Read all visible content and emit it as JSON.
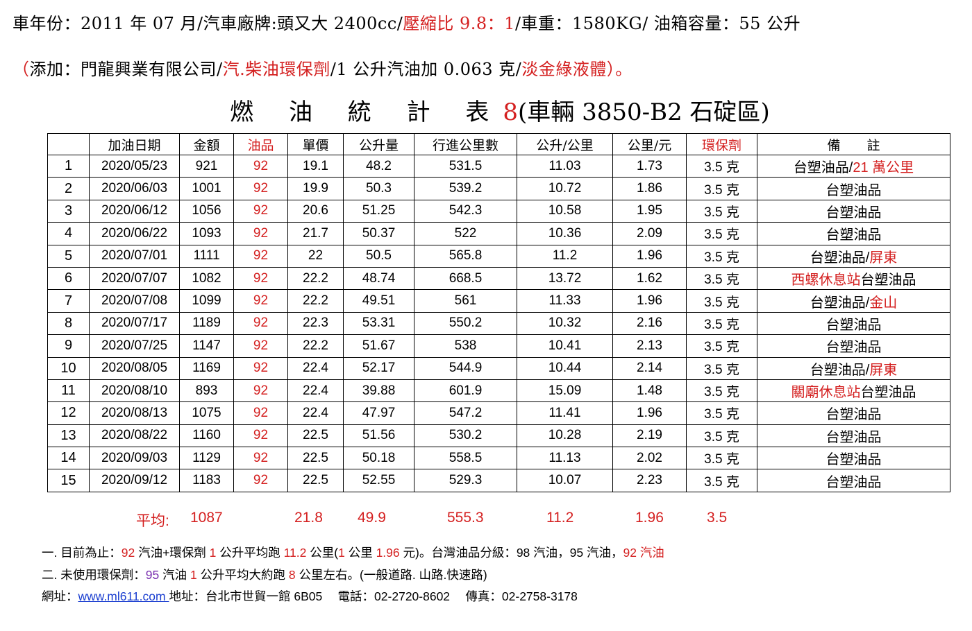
{
  "header": {
    "line1": "車年份：2011 年 07 月/汽車廠牌:頭又大 2400cc/",
    "line1_red": "壓縮比 9.8：1",
    "line1_tail": "/車重：1580KG/ 油箱容量：55 公升",
    "line2_open": "（",
    "line2_a": "添加：門龍興業有限公司/",
    "line2_b": "汽.柴油環保劑",
    "line2_c": "/1 公升汽油加 0.063 克/",
    "line2_d": "淡金綠液體",
    "line2_close": "）。"
  },
  "title": {
    "prefix": "燃 油 統 計 表",
    "number": "8",
    "suffix": "(車輛 3850-B2 石碇區)"
  },
  "table": {
    "headers": [
      "",
      "加油日期",
      "金額",
      "油品",
      "單價",
      "公升量",
      "行進公里數",
      "公升/公里",
      "公里/元",
      "環保劑",
      "備　　註"
    ],
    "rows": [
      {
        "no": "1",
        "date": "2020/05/23",
        "amount": "921",
        "fuel": "92",
        "price": "19.1",
        "liters": "48.2",
        "km": "531.5",
        "lpk": "11.03",
        "kpy": "1.73",
        "additive": "3.5 克",
        "note_a": "台塑油品/",
        "note_b": "21 萬公里"
      },
      {
        "no": "2",
        "date": "2020/06/03",
        "amount": "1001",
        "fuel": "92",
        "price": "19.9",
        "liters": "50.3",
        "km": "539.2",
        "lpk": "10.72",
        "kpy": "1.86",
        "additive": "3.5 克",
        "note_a": "台塑油品",
        "note_b": ""
      },
      {
        "no": "3",
        "date": "2020/06/12",
        "amount": "1056",
        "fuel": "92",
        "price": "20.6",
        "liters": "51.25",
        "km": "542.3",
        "lpk": "10.58",
        "kpy": "1.95",
        "additive": "3.5 克",
        "note_a": "台塑油品",
        "note_b": ""
      },
      {
        "no": "4",
        "date": "2020/06/22",
        "amount": "1093",
        "fuel": "92",
        "price": "21.7",
        "liters": "50.37",
        "km": "522",
        "lpk": "10.36",
        "kpy": "2.09",
        "additive": "3.5 克",
        "note_a": "台塑油品",
        "note_b": ""
      },
      {
        "no": "5",
        "date": "2020/07/01",
        "amount": "1111",
        "fuel": "92",
        "price": "22",
        "liters": "50.5",
        "km": "565.8",
        "lpk": "11.2",
        "kpy": "1.96",
        "additive": "3.5 克",
        "note_a": "台塑油品/",
        "note_b": "屏東"
      },
      {
        "no": "6",
        "date": "2020/07/07",
        "amount": "1082",
        "fuel": "92",
        "price": "22.2",
        "liters": "48.74",
        "km": "668.5",
        "lpk": "13.72",
        "kpy": "1.62",
        "additive": "3.5 克",
        "note_pre": "西螺休息站",
        "note_a": "台塑油品",
        "note_b": ""
      },
      {
        "no": "7",
        "date": "2020/07/08",
        "amount": "1099",
        "fuel": "92",
        "price": "22.2",
        "liters": "49.51",
        "km": "561",
        "lpk": "11.33",
        "kpy": "1.96",
        "additive": "3.5 克",
        "note_a": "台塑油品/",
        "note_b": "金山"
      },
      {
        "no": "8",
        "date": "2020/07/17",
        "amount": "1189",
        "fuel": "92",
        "price": "22.3",
        "liters": "53.31",
        "km": "550.2",
        "lpk": "10.32",
        "kpy": "2.16",
        "additive": "3.5 克",
        "note_a": "台塑油品",
        "note_b": ""
      },
      {
        "no": "9",
        "date": "2020/07/25",
        "amount": "1147",
        "fuel": "92",
        "price": "22.2",
        "liters": "51.67",
        "km": "538",
        "lpk": "10.41",
        "kpy": "2.13",
        "additive": "3.5 克",
        "note_a": "台塑油品",
        "note_b": ""
      },
      {
        "no": "10",
        "date": "2020/08/05",
        "amount": "1169",
        "fuel": "92",
        "price": "22.4",
        "liters": "52.17",
        "km": "544.9",
        "lpk": "10.44",
        "kpy": "2.14",
        "additive": "3.5 克",
        "note_a": "台塑油品/",
        "note_b": "屏東"
      },
      {
        "no": "11",
        "date": "2020/08/10",
        "amount": "893",
        "fuel": "92",
        "price": "22.4",
        "liters": "39.88",
        "km": "601.9",
        "lpk": "15.09",
        "kpy": "1.48",
        "additive": "3.5 克",
        "note_pre": "關廟休息站",
        "note_a": "台塑油品",
        "note_b": ""
      },
      {
        "no": "12",
        "date": "2020/08/13",
        "amount": "1075",
        "fuel": "92",
        "price": "22.4",
        "liters": "47.97",
        "km": "547.2",
        "lpk": "11.41",
        "kpy": "1.96",
        "additive": "3.5 克",
        "note_a": "台塑油品",
        "note_b": ""
      },
      {
        "no": "13",
        "date": "2020/08/22",
        "amount": "1160",
        "fuel": "92",
        "price": "22.5",
        "liters": "51.56",
        "km": "530.2",
        "lpk": "10.28",
        "kpy": "2.19",
        "additive": "3.5 克",
        "note_a": "台塑油品",
        "note_b": ""
      },
      {
        "no": "14",
        "date": "2020/09/03",
        "amount": "1129",
        "fuel": "92",
        "price": "22.5",
        "liters": "50.18",
        "km": "558.5",
        "lpk": "11.13",
        "kpy": "2.02",
        "additive": "3.5 克",
        "note_a": "台塑油品",
        "note_b": ""
      },
      {
        "no": "15",
        "date": "2020/09/12",
        "amount": "1183",
        "fuel": "92",
        "price": "22.5",
        "liters": "52.55",
        "km": "529.3",
        "lpk": "10.07",
        "kpy": "2.23",
        "additive": "3.5 克",
        "note_a": "台塑油品",
        "note_b": ""
      }
    ]
  },
  "average": {
    "label": "平均:",
    "amount": "1087",
    "price": "21.8",
    "liters": "49.9",
    "km": "555.3",
    "lpk": "11.2",
    "kpy": "1.96",
    "additive": "3.5"
  },
  "footer": {
    "line1": [
      {
        "t": "一. 目前為止：",
        "c": ""
      },
      {
        "t": "92",
        "c": "red"
      },
      {
        "t": " 汽油+環保劑 ",
        "c": ""
      },
      {
        "t": "1",
        "c": "red"
      },
      {
        "t": " 公升平均跑 ",
        "c": ""
      },
      {
        "t": "11.2",
        "c": "red"
      },
      {
        "t": " 公里(",
        "c": ""
      },
      {
        "t": "1",
        "c": "red"
      },
      {
        "t": " 公里 ",
        "c": ""
      },
      {
        "t": "1.96",
        "c": "red"
      },
      {
        "t": " 元)。台灣油品分級：98 汽油，95 汽油，",
        "c": ""
      },
      {
        "t": "92 汽油",
        "c": "red"
      }
    ],
    "line2": [
      {
        "t": "二. 未使用環保劑：",
        "c": ""
      },
      {
        "t": "95",
        "c": "purple"
      },
      {
        "t": " 汽油 ",
        "c": ""
      },
      {
        "t": "1",
        "c": "red"
      },
      {
        "t": " 公升平均大約跑 ",
        "c": ""
      },
      {
        "t": "8",
        "c": "red"
      },
      {
        "t": " 公里左右。(一般道路. 山路.快速路)",
        "c": ""
      }
    ],
    "line3_label": "網址：",
    "line3_url": "www.ml611.com ",
    "line3_rest": "地址：台北市世貿一館 6B05　 電話：02-2720-8602　 傳真：02-2758-3178"
  }
}
